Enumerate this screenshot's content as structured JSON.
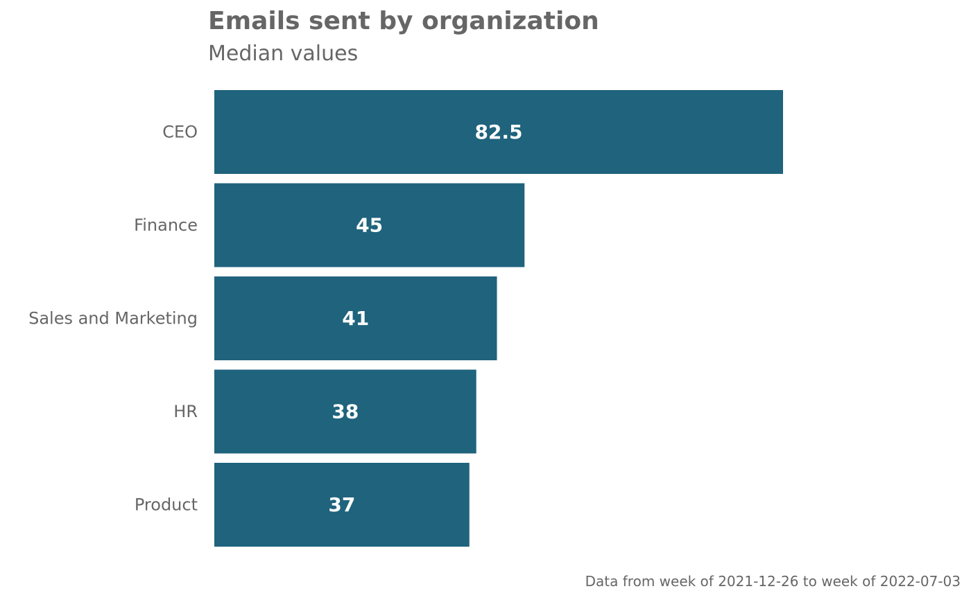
{
  "colors": {
    "bar": "#1f637d",
    "text": "#666666",
    "bar_label": "#ffffff",
    "background": "#ffffff"
  },
  "chart_data": {
    "type": "bar",
    "orientation": "horizontal",
    "title": "Emails sent by organization",
    "subtitle": "Median values",
    "caption": "Data from week of 2021-12-26 to week of 2022-07-03",
    "xlabel": "",
    "ylabel": "",
    "categories": [
      "CEO",
      "Finance",
      "Sales and Marketing",
      "HR",
      "Product"
    ],
    "values": [
      82.5,
      45,
      41,
      38,
      37
    ],
    "value_labels": [
      "82.5",
      "45",
      "41",
      "38",
      "37"
    ],
    "xlim": [
      0,
      82.5
    ],
    "grid": false,
    "legend": "none"
  }
}
